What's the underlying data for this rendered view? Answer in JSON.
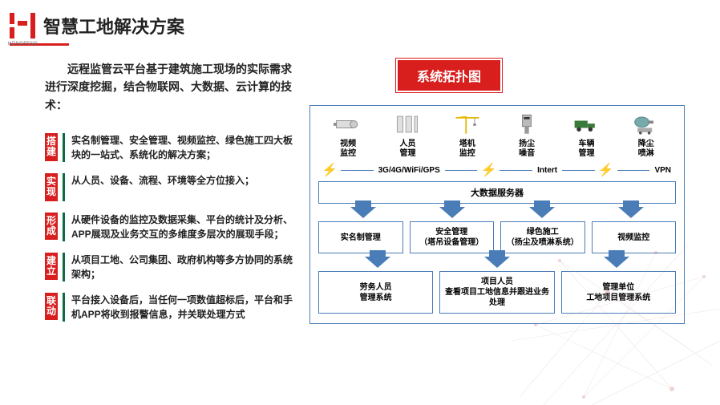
{
  "brand": "HONGFENG",
  "page_title": "智慧工地解决方案",
  "colors": {
    "accent": "#d91e1e",
    "box_border": "#4a7db8",
    "feat_bar": "#0f6b3f",
    "text": "#222222",
    "bg": "#ffffff"
  },
  "intro": "远程监管云平台基于建筑施工现场的实际需求进行深度挖掘，结合物联网、大数据、云计算的技术：",
  "features": [
    {
      "tag": "搭建",
      "text": "实名制管理、安全管理、视频监控、绿色施工四大板块的一站式、系统化的解决方案；"
    },
    {
      "tag": "实现",
      "text": "从人员、设备、流程、环境等全方位接入；"
    },
    {
      "tag": "形成",
      "text": "从硬件设备的监控及数据采集、平台的统计及分析、APP展现及业务交互的多维度多层次的展现手段；"
    },
    {
      "tag": "建立",
      "text": "从项目工地、公司集团、政府机构等多方协同的系统架构；"
    },
    {
      "tag": "联动",
      "text": "平台接入设备后，当任何一项数值超标后，平台和手机APP将收到报警信息，并关联处理方式"
    }
  ],
  "topology": {
    "title": "系统拓扑图",
    "devices": [
      {
        "label": "视频\n监控",
        "icon": "camera"
      },
      {
        "label": "人员\n管理",
        "icon": "gate"
      },
      {
        "label": "塔机\n监控",
        "icon": "crane"
      },
      {
        "label": "扬尘\n噪音",
        "icon": "sensor"
      },
      {
        "label": "车辆\n管理",
        "icon": "truck"
      },
      {
        "label": "降尘\n喷淋",
        "icon": "spray"
      }
    ],
    "networks": [
      "3G/4G/WiFi/GPS",
      "Intert",
      "VPN"
    ],
    "server": "大数据服务器",
    "mgmt_layer": [
      "实名制管理",
      "安全管理\n（塔吊设备管理）",
      "绿色施工\n（扬尘及喷淋系统）",
      "视频监控"
    ],
    "user_layer": [
      "劳务人员\n管理系统",
      "项目人员\n查看项目工地信息并跟进业务处理",
      "管理单位\n工地项目管理系统"
    ]
  }
}
